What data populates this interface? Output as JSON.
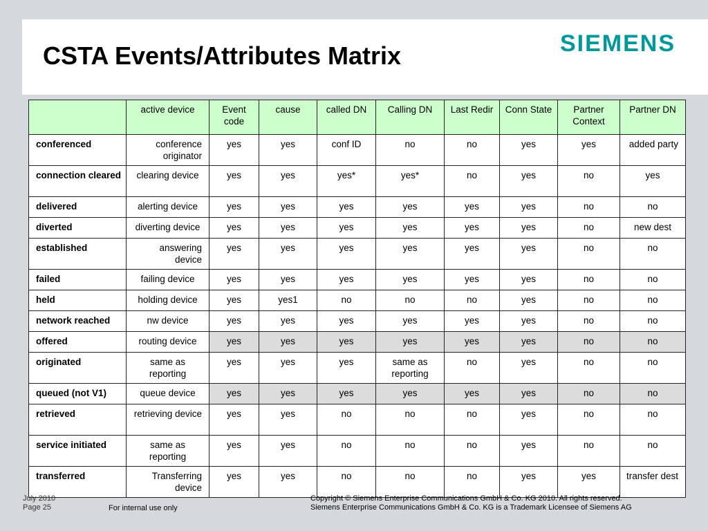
{
  "title": "CSTA Events/Attributes Matrix",
  "logo": "SIEMENS",
  "columns": [
    "active device",
    "Event code",
    "cause",
    "called DN",
    "Calling DN",
    "Last Redir",
    "Conn State",
    "Partner Context",
    "Partner DN"
  ],
  "rows": [
    {
      "label": "conferenced",
      "cells": [
        "conference originator",
        "yes",
        "yes",
        "conf ID",
        "no",
        "no",
        "yes",
        "yes",
        "added party"
      ]
    },
    {
      "label": "connection cleared",
      "cells": [
        "clearing device",
        "yes",
        "yes",
        "yes*",
        "yes*",
        "no",
        "yes",
        "no",
        "yes"
      ]
    },
    {
      "label": "delivered",
      "cells": [
        "alerting device",
        "yes",
        "yes",
        "yes",
        "yes",
        "yes",
        "yes",
        "no",
        "no"
      ]
    },
    {
      "label": "diverted",
      "cells": [
        "diverting device",
        "yes",
        "yes",
        "yes",
        "yes",
        "yes",
        "yes",
        "no",
        "new dest"
      ]
    },
    {
      "label": "established",
      "cells": [
        "answering device",
        "yes",
        "yes",
        "yes",
        "yes",
        "yes",
        "yes",
        "no",
        "no"
      ]
    },
    {
      "label": "failed",
      "cells": [
        "failing device",
        "yes",
        "yes",
        "yes",
        "yes",
        "yes",
        "yes",
        "no",
        "no"
      ]
    },
    {
      "label": "held",
      "cells": [
        "holding device",
        "yes",
        "yes1",
        "no",
        "no",
        "no",
        "yes",
        "no",
        "no"
      ]
    },
    {
      "label": "network reached",
      "cells": [
        "nw device",
        "yes",
        "yes",
        "yes",
        "yes",
        "yes",
        "yes",
        "no",
        "no"
      ]
    },
    {
      "label": "offered",
      "cells": [
        "routing device",
        "yes",
        "yes",
        "yes",
        "yes",
        "yes",
        "yes",
        "no",
        "no"
      ]
    },
    {
      "label": "originated",
      "cells": [
        "same as reporting",
        "yes",
        "yes",
        "yes",
        "same as reporting",
        "no",
        "yes",
        "no",
        "no"
      ]
    },
    {
      "label": "queued  (not V1)",
      "cells": [
        "queue device",
        "yes",
        "yes",
        "yes",
        "yes",
        "yes",
        "yes",
        "no",
        "no"
      ]
    },
    {
      "label": "retrieved",
      "cells": [
        "retrieving device",
        "yes",
        "yes",
        "no",
        "no",
        "no",
        "yes",
        "no",
        "no"
      ]
    },
    {
      "label": "service initiated",
      "cells": [
        "same as reporting",
        "yes",
        "yes",
        "no",
        "no",
        "no",
        "yes",
        "no",
        "no"
      ]
    },
    {
      "label": "transferred",
      "cells": [
        "Transferring device",
        "yes",
        "yes",
        "no",
        "no",
        "no",
        "yes",
        "yes",
        "transfer dest"
      ]
    }
  ],
  "footer": {
    "date": "July 2010",
    "page": "Page 25",
    "internal": "For internal use only",
    "copyright": "Copyright © Siemens Enterprise Communications GmbH & Co. KG 2010. All rights reserved.",
    "trademark": "Siemens Enterprise Communications GmbH & Co. KG is a Trademark Licensee of Siemens AG"
  }
}
